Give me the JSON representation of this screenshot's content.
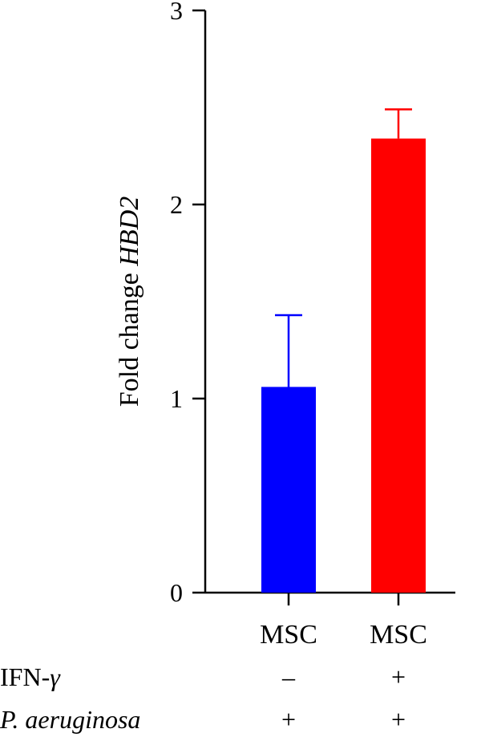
{
  "chart_data": {
    "type": "bar",
    "categories": [
      "MSC",
      "MSC"
    ],
    "series": [
      {
        "values": [
          1.06,
          2.34
        ],
        "errors": [
          0.37,
          0.15
        ],
        "colors": [
          "#0000ff",
          "#ff0000"
        ]
      }
    ],
    "ylabel": {
      "prefix": "Fold change ",
      "gene": "HBD2"
    },
    "ylim": [
      0,
      3
    ],
    "yticks": [
      0,
      1,
      2,
      3
    ],
    "ytick_labels": [
      "0",
      "1",
      "2",
      "3"
    ],
    "grid": false,
    "condition_rows": [
      {
        "label": "IFN-",
        "label_symbol": "γ",
        "italic": false,
        "values": [
          "–",
          "+"
        ]
      },
      {
        "label": "P. aeruginosa",
        "label_symbol": "",
        "italic": true,
        "values": [
          "+",
          "+"
        ]
      }
    ]
  }
}
